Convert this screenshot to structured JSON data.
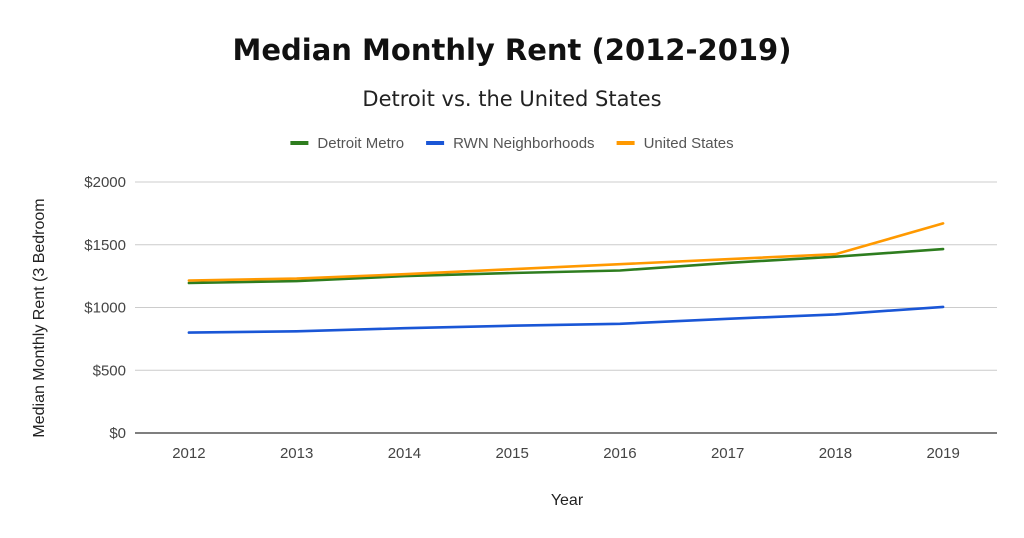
{
  "chart_data": {
    "type": "line",
    "title": "Median Monthly Rent (2012-2019)",
    "subtitle": "Detroit vs. the United States",
    "xlabel": "Year",
    "ylabel": "Median Monthly Rent (3 Bedroom",
    "categories": [
      "2012",
      "2013",
      "2014",
      "2015",
      "2016",
      "2017",
      "2018",
      "2019"
    ],
    "y_ticks": [
      0,
      500,
      1000,
      1500,
      2000
    ],
    "y_tick_labels": [
      "$0",
      "$500",
      "$1000",
      "$1500",
      "$2000"
    ],
    "ylim": [
      0,
      2000
    ],
    "grid": true,
    "legend_position": "top-center",
    "series": [
      {
        "name": "Detroit Metro",
        "color": "#2e7d1f",
        "values": [
          1195,
          1210,
          1250,
          1275,
          1295,
          1355,
          1405,
          1465
        ]
      },
      {
        "name": "RWN Neighborhoods",
        "color": "#1a56d6",
        "values": [
          800,
          810,
          835,
          855,
          870,
          910,
          945,
          1005
        ]
      },
      {
        "name": "United States",
        "color": "#ff9900",
        "values": [
          1215,
          1230,
          1265,
          1305,
          1345,
          1385,
          1425,
          1670
        ]
      }
    ]
  }
}
